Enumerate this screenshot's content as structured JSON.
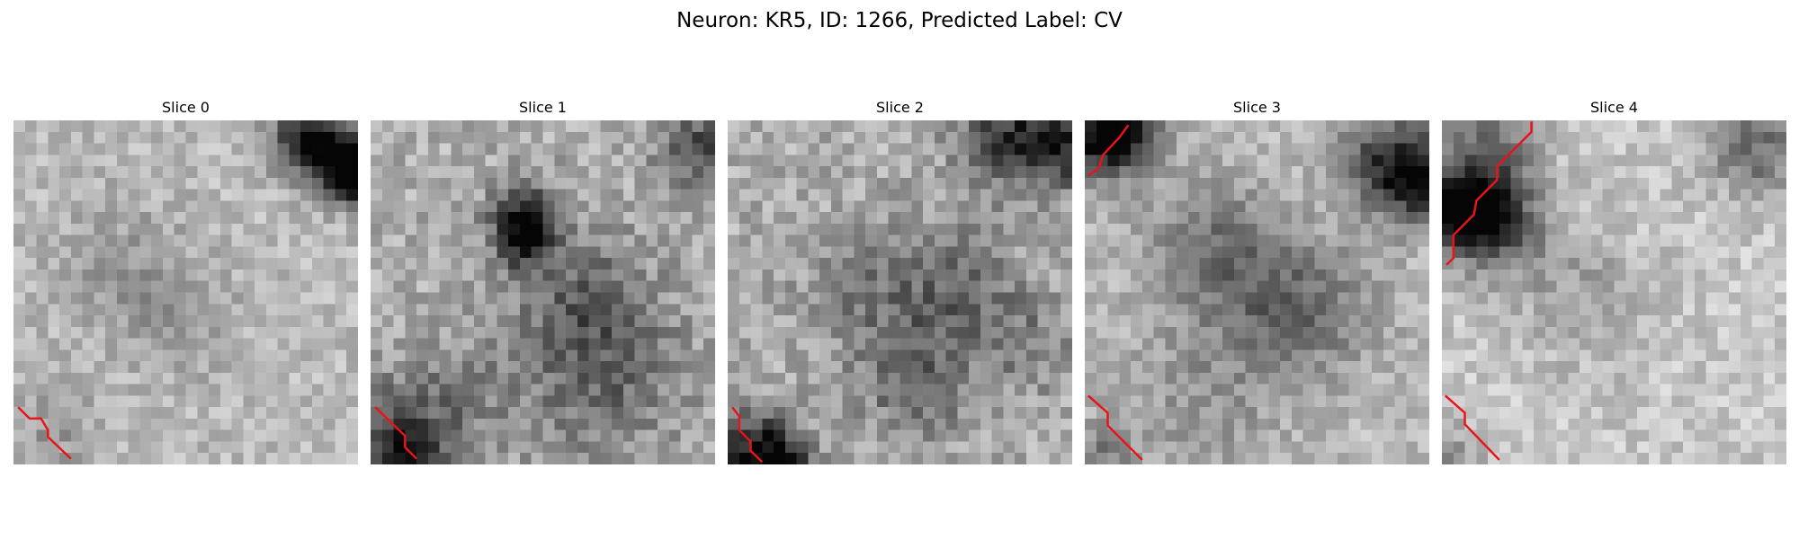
{
  "figure": {
    "title": "Neuron: KR5, ID: 1266, Predicted Label: CV"
  },
  "panels": [
    {
      "title": "Slice 0"
    },
    {
      "title": "Slice 1"
    },
    {
      "title": "Slice 2"
    },
    {
      "title": "Slice 3"
    },
    {
      "title": "Slice 4"
    }
  ],
  "style": {
    "contour_color": "#e8141b",
    "image_colormap": "grayscale"
  }
}
